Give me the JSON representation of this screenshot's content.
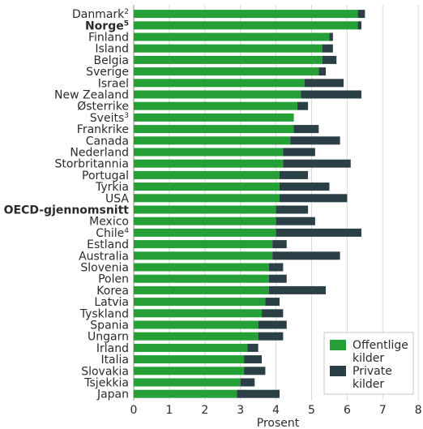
{
  "chart_data": {
    "type": "bar",
    "orientation": "horizontal",
    "stacked": true,
    "xlabel": "Prosent",
    "xlim": [
      0,
      8
    ],
    "xticks": [
      "0",
      "1",
      "2",
      "3",
      "4",
      "5",
      "6",
      "7",
      "8"
    ],
    "grid": "vertical",
    "legend_position": "bottom-right",
    "categories": [
      {
        "name": "Danmark",
        "sup": "2",
        "bold": false
      },
      {
        "name": "Norge",
        "sup": "5",
        "bold": true
      },
      {
        "name": "Finland",
        "sup": "",
        "bold": false
      },
      {
        "name": "Island",
        "sup": "",
        "bold": false
      },
      {
        "name": "Belgia",
        "sup": "",
        "bold": false
      },
      {
        "name": "Sverige",
        "sup": "",
        "bold": false
      },
      {
        "name": "Israel",
        "sup": "",
        "bold": false
      },
      {
        "name": "New Zealand",
        "sup": "",
        "bold": false
      },
      {
        "name": "Østerrike",
        "sup": "",
        "bold": false
      },
      {
        "name": "Sveits",
        "sup": "3",
        "bold": false
      },
      {
        "name": "Frankrike",
        "sup": "",
        "bold": false
      },
      {
        "name": "Canada",
        "sup": "",
        "bold": false
      },
      {
        "name": "Nederland",
        "sup": "",
        "bold": false
      },
      {
        "name": "Storbritannia",
        "sup": "",
        "bold": false
      },
      {
        "name": "Portugal",
        "sup": "",
        "bold": false
      },
      {
        "name": "Tyrkia",
        "sup": "",
        "bold": false
      },
      {
        "name": "USA",
        "sup": "",
        "bold": false
      },
      {
        "name": "OECD-gjennomsnitt",
        "sup": "",
        "bold": true
      },
      {
        "name": "Mexico",
        "sup": "",
        "bold": false
      },
      {
        "name": "Chile",
        "sup": "4",
        "bold": false
      },
      {
        "name": "Estland",
        "sup": "",
        "bold": false
      },
      {
        "name": "Australia",
        "sup": "",
        "bold": false
      },
      {
        "name": "Slovenia",
        "sup": "",
        "bold": false
      },
      {
        "name": "Polen",
        "sup": "",
        "bold": false
      },
      {
        "name": "Korea",
        "sup": "",
        "bold": false
      },
      {
        "name": "Latvia",
        "sup": "",
        "bold": false
      },
      {
        "name": "Tyskland",
        "sup": "",
        "bold": false
      },
      {
        "name": "Spania",
        "sup": "",
        "bold": false
      },
      {
        "name": "Ungarn",
        "sup": "",
        "bold": false
      },
      {
        "name": "Irland",
        "sup": "",
        "bold": false
      },
      {
        "name": "Italia",
        "sup": "",
        "bold": false
      },
      {
        "name": "Slovakia",
        "sup": "",
        "bold": false
      },
      {
        "name": "Tsjekkia",
        "sup": "",
        "bold": false
      },
      {
        "name": "Japan",
        "sup": "",
        "bold": false
      }
    ],
    "series": [
      {
        "name": "Offentlige kilder",
        "legend_lines": [
          "Offentlige",
          "kilder"
        ],
        "color": "#25a037",
        "values": [
          6.3,
          6.3,
          5.5,
          5.3,
          5.3,
          5.2,
          4.8,
          4.7,
          4.6,
          4.5,
          4.5,
          4.4,
          4.2,
          4.2,
          4.1,
          4.1,
          4.1,
          4.0,
          4.0,
          4.0,
          3.9,
          3.9,
          3.8,
          3.8,
          3.8,
          3.7,
          3.6,
          3.5,
          3.5,
          3.2,
          3.1,
          3.1,
          3.0,
          2.9
        ]
      },
      {
        "name": "Private kilder",
        "legend_lines": [
          "Private",
          "kilder"
        ],
        "color": "#2b3f46",
        "values": [
          0.2,
          0.1,
          0.1,
          0.3,
          0.4,
          0.2,
          1.1,
          1.7,
          0.3,
          0.0,
          0.7,
          1.4,
          0.9,
          1.9,
          0.8,
          1.4,
          1.9,
          0.9,
          1.1,
          2.4,
          0.4,
          1.9,
          0.4,
          0.5,
          1.6,
          0.4,
          0.6,
          0.8,
          0.7,
          0.3,
          0.5,
          0.6,
          0.4,
          1.2
        ]
      }
    ]
  }
}
